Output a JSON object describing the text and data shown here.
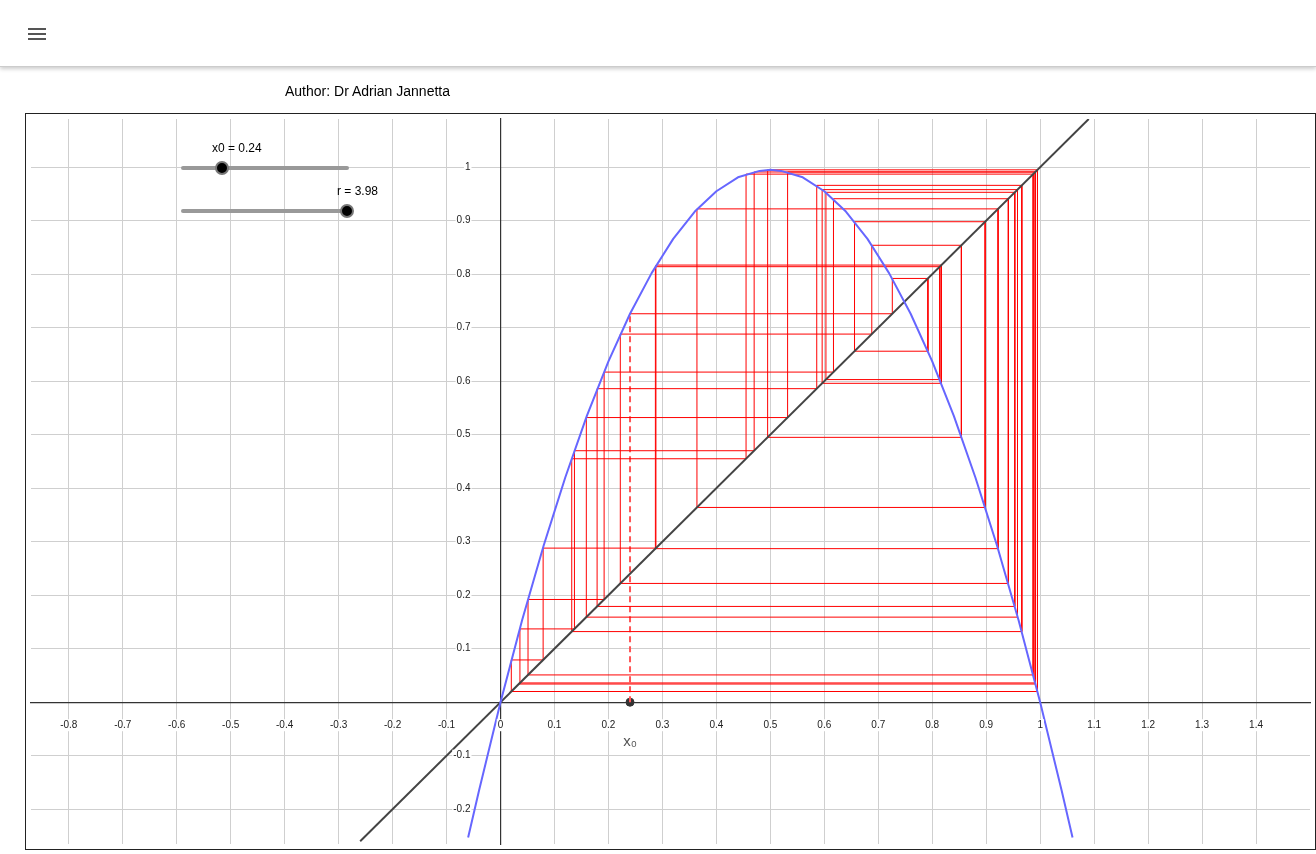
{
  "chart_data": {
    "type": "line",
    "annotations": [
      "Author: Dr Adrian Jannetta",
      "x0 = 0.24",
      "r = 3.98",
      {
        "text": "x₀",
        "x": 0.24,
        "y": 0
      }
    ],
    "xlim": [
      -0.87,
      1.5
    ],
    "ylim": [
      -0.265,
      1.09
    ],
    "xticks": [
      -0.8,
      -0.7,
      -0.6,
      -0.5,
      -0.4,
      -0.3,
      -0.2,
      -0.1,
      0,
      0.1,
      0.2,
      0.3,
      0.4,
      0.5,
      0.6,
      0.7,
      0.8,
      0.9,
      1,
      1.1,
      1.2,
      1.3,
      1.4
    ],
    "yticks": [
      -0.2,
      -0.1,
      0.1,
      0.2,
      0.3,
      0.4,
      0.5,
      0.6,
      0.7,
      0.8,
      0.9,
      1
    ],
    "grid": true,
    "marker": "none",
    "line_style": "solid",
    "series": [
      {
        "color": "#6666ff",
        "x": [
          -0.06,
          -0.04,
          0,
          0.04,
          0.08,
          0.12,
          0.16,
          0.2,
          0.24,
          0.28,
          0.32,
          0.36,
          0.4,
          0.44,
          0.48,
          0.5,
          0.52,
          0.56,
          0.6,
          0.64,
          0.68,
          0.72,
          0.76,
          0.8,
          0.84,
          0.88,
          0.92,
          0.96,
          1,
          1.04,
          1.06
        ],
        "values": [
          -0.253,
          -0.166,
          0,
          0.153,
          0.293,
          0.42,
          0.535,
          0.637,
          0.726,
          0.802,
          0.866,
          0.917,
          0.955,
          0.981,
          0.993,
          0.995,
          0.993,
          0.981,
          0.955,
          0.917,
          0.866,
          0.802,
          0.726,
          0.637,
          0.535,
          0.42,
          0.293,
          0.153,
          0,
          -0.166,
          -0.253
        ]
      },
      {
        "color": "#444444",
        "x": [
          -0.26,
          1.09
        ],
        "values": [
          -0.26,
          1.09
        ]
      },
      {
        "color": "#ff0000",
        "x": [
          0.24,
          0.726,
          0.726,
          0.792,
          0.792,
          0.656,
          0.656,
          0.898,
          0.898,
          0.364,
          0.364,
          0.922,
          0.922,
          0.287,
          0.287,
          0.814,
          0.814,
          0.603,
          0.603,
          0.953,
          0.953,
          0.179,
          0.179,
          0.586,
          0.586,
          0.966,
          0.966,
          0.132,
          0.132,
          0.455,
          0.455,
          0.987,
          0.987,
          0.051,
          0.051,
          0.192,
          0.192,
          0.617,
          0.617,
          0.941,
          0.941,
          0.222,
          0.222,
          0.688,
          0.688,
          0.854,
          0.854,
          0.495,
          0.495,
          0.995,
          0.995,
          0.02,
          0.02,
          0.079,
          0.079,
          0.288,
          0.288,
          0.817,
          0.817,
          0.596,
          0.596,
          0.958,
          0.958,
          0.159,
          0.159,
          0.532,
          0.532,
          0.991,
          0.991,
          0.036,
          0.036,
          0.137,
          0.137,
          0.47,
          0.47,
          0.991,
          0.991,
          0.034
        ],
        "values": [
          0.726,
          0.726,
          0.792,
          0.792,
          0.656,
          0.656,
          0.898,
          0.898,
          0.364,
          0.364,
          0.922,
          0.922,
          0.287,
          0.287,
          0.814,
          0.814,
          0.603,
          0.603,
          0.953,
          0.953,
          0.179,
          0.179,
          0.586,
          0.586,
          0.966,
          0.966,
          0.132,
          0.132,
          0.455,
          0.455,
          0.987,
          0.987,
          0.051,
          0.051,
          0.192,
          0.192,
          0.617,
          0.617,
          0.941,
          0.941,
          0.222,
          0.222,
          0.688,
          0.688,
          0.854,
          0.854,
          0.495,
          0.495,
          0.995,
          0.995,
          0.02,
          0.02,
          0.079,
          0.079,
          0.288,
          0.288,
          0.817,
          0.817,
          0.596,
          0.596,
          0.958,
          0.958,
          0.159,
          0.159,
          0.532,
          0.532,
          0.991,
          0.991,
          0.036,
          0.036,
          0.137,
          0.137,
          0.47,
          0.47,
          0.991,
          0.991,
          0.034,
          0.034
        ]
      },
      {
        "color": "#ff5555",
        "line_style": "dashed",
        "x": [
          0.24,
          0.24
        ],
        "values": [
          0,
          0.726
        ]
      },
      {
        "type": "scatter",
        "marker": "circle",
        "color": "#333333",
        "x": [
          0.24
        ],
        "values": [
          0
        ]
      }
    ]
  }
}
